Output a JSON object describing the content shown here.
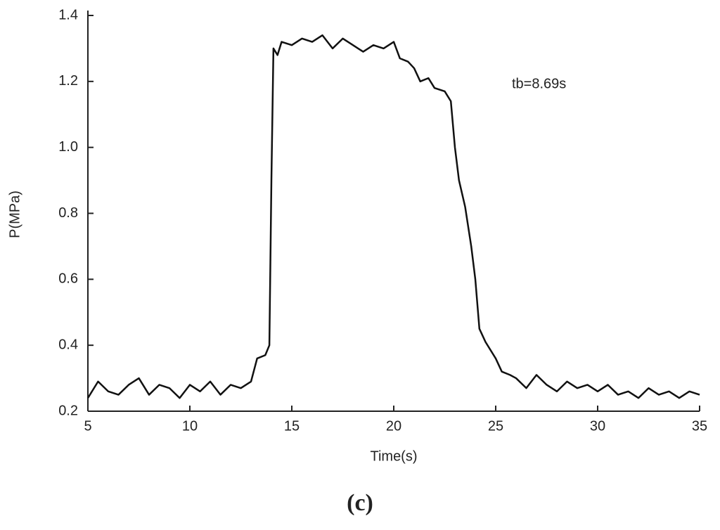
{
  "chart_data": {
    "type": "line",
    "x_label": "Time(s)",
    "y_label": "P(MPa)",
    "annotation": "tb=8.69s",
    "caption": "(c)",
    "x": [
      5,
      5.5,
      6,
      6.5,
      7,
      7.5,
      8,
      8.5,
      9,
      9.5,
      10,
      10.5,
      11,
      11.5,
      12,
      12.5,
      13,
      13.3,
      13.7,
      13.9,
      14,
      14.1,
      14.3,
      14.5,
      15,
      15.5,
      16,
      16.5,
      17,
      17.5,
      18,
      18.5,
      19,
      19.5,
      20,
      20.3,
      20.7,
      21,
      21.3,
      21.7,
      22,
      22.5,
      22.8,
      23,
      23.2,
      23.5,
      23.8,
      24,
      24.2,
      24.5,
      25,
      25.3,
      25.7,
      26,
      26.5,
      27,
      27.5,
      28,
      28.5,
      29,
      29.5,
      30,
      30.5,
      31,
      31.5,
      32,
      32.5,
      33,
      33.5,
      34,
      34.5,
      35
    ],
    "series": [
      {
        "color": "#111111",
        "values": [
          0.24,
          0.29,
          0.26,
          0.25,
          0.28,
          0.3,
          0.25,
          0.28,
          0.27,
          0.24,
          0.28,
          0.26,
          0.29,
          0.25,
          0.28,
          0.27,
          0.29,
          0.36,
          0.37,
          0.4,
          0.9,
          1.3,
          1.28,
          1.32,
          1.31,
          1.33,
          1.32,
          1.34,
          1.3,
          1.33,
          1.31,
          1.29,
          1.31,
          1.3,
          1.32,
          1.27,
          1.26,
          1.24,
          1.2,
          1.21,
          1.18,
          1.17,
          1.14,
          1.0,
          0.9,
          0.82,
          0.7,
          0.6,
          0.45,
          0.41,
          0.36,
          0.32,
          0.31,
          0.3,
          0.27,
          0.31,
          0.28,
          0.26,
          0.29,
          0.27,
          0.28,
          0.26,
          0.28,
          0.25,
          0.26,
          0.24,
          0.27,
          0.25,
          0.26,
          0.24,
          0.26,
          0.25
        ]
      }
    ],
    "xlim": [
      5,
      35
    ],
    "xticks": [
      5,
      10,
      15,
      20,
      25,
      30,
      35
    ],
    "ylim": [
      0.2,
      1.4
    ],
    "yticks": [
      0.2,
      0.4,
      0.6,
      0.8,
      {
        "value": 1,
        "label": "1.0"
      },
      1.2,
      1.4
    ]
  }
}
